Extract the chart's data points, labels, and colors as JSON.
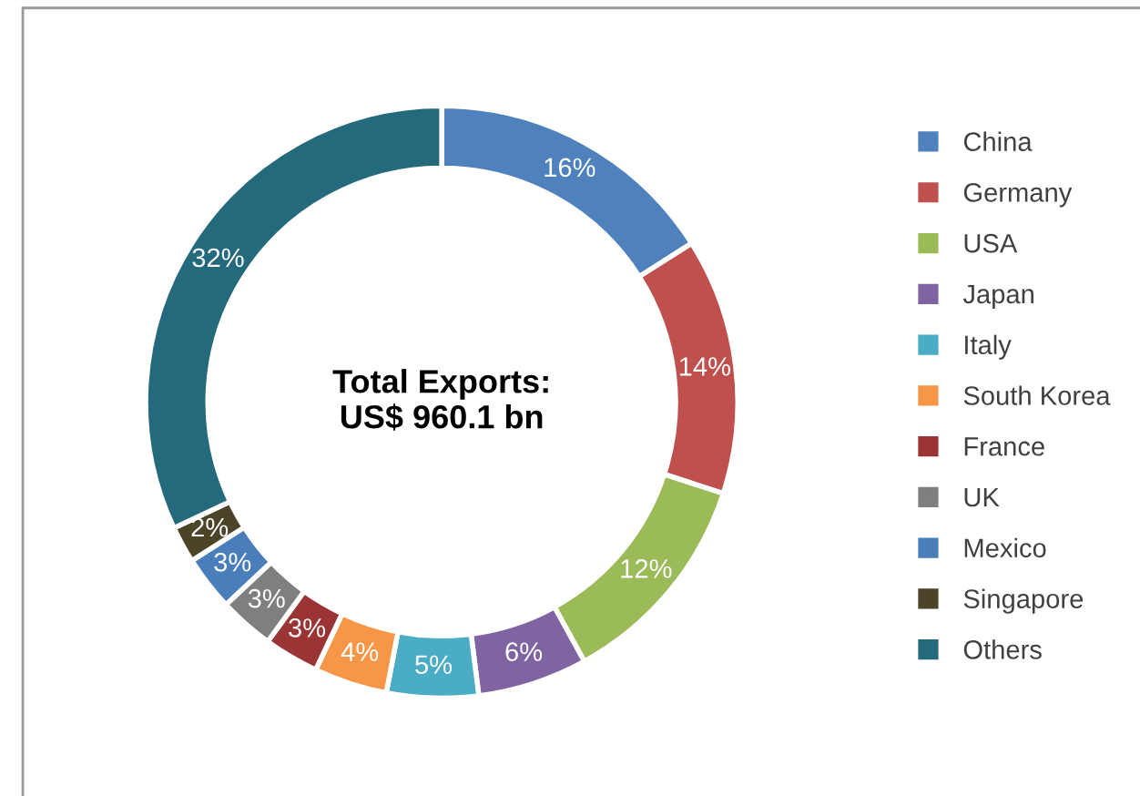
{
  "chart_data": {
    "type": "donut",
    "categories": [
      "China",
      "Germany",
      "USA",
      "Japan",
      "Italy",
      "South Korea",
      "France",
      "UK",
      "Mexico",
      "Singapore",
      "Others"
    ],
    "values": [
      16,
      14,
      12,
      6,
      5,
      4,
      3,
      3,
      3,
      2,
      32
    ],
    "value_labels": [
      "16%",
      "14%",
      "12%",
      "6%",
      "5%",
      "4%",
      "3%",
      "3%",
      "3%",
      "2%",
      "32%"
    ],
    "colors": [
      "#4f81bd",
      "#c0504d",
      "#9bbb59",
      "#8064a2",
      "#4bacc6",
      "#f79646",
      "#9b3535",
      "#7f7f7f",
      "#4a7ebb",
      "#4b4428",
      "#256a7c"
    ],
    "annotations": [
      "Total Exports:\nUS$ 960.1 bn"
    ],
    "legend": "right"
  }
}
